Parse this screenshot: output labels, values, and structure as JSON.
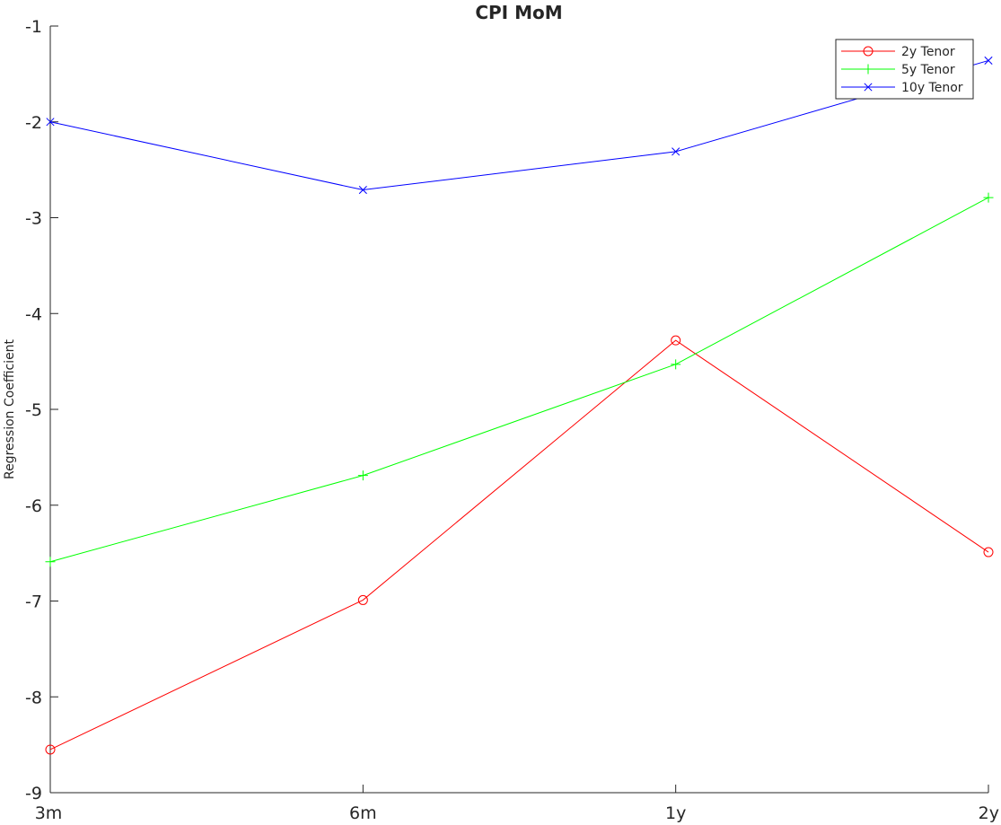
{
  "chart_data": {
    "type": "line",
    "title": "CPI MoM",
    "xlabel": "",
    "ylabel": "Regression Coefficient",
    "categories": [
      "3m",
      "6m",
      "1y",
      "2y"
    ],
    "ylim": [
      -9,
      -1
    ],
    "yticks": [
      -1,
      -2,
      -3,
      -4,
      -5,
      -6,
      -7,
      -8,
      -9
    ],
    "grid": false,
    "legend_position": "top-right",
    "series": [
      {
        "name": "2y Tenor",
        "color": "#ff0000",
        "marker": "circle",
        "values": [
          -8.55,
          -6.99,
          -4.28,
          -6.49
        ]
      },
      {
        "name": "5y Tenor",
        "color": "#00ff00",
        "marker": "plus",
        "values": [
          -6.59,
          -5.69,
          -4.53,
          -2.79
        ]
      },
      {
        "name": "10y Tenor",
        "color": "#0000ff",
        "marker": "x",
        "values": [
          -2.0,
          -2.71,
          -2.31,
          -1.36
        ]
      }
    ]
  }
}
